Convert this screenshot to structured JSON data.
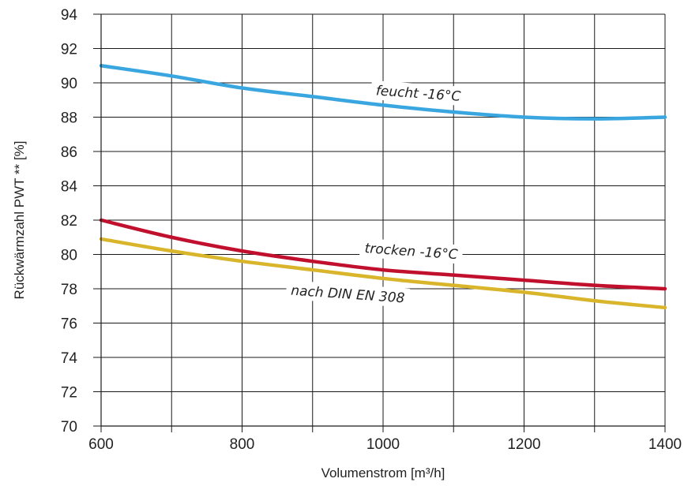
{
  "chart_data": {
    "type": "line",
    "title": "",
    "xlabel": "Volumenstrom [m³/h]",
    "ylabel": "Rückwärmzahl PWT ** [%]",
    "xlim": [
      600,
      1400
    ],
    "ylim": [
      70,
      94
    ],
    "x_ticks": [
      600,
      800,
      1000,
      1200,
      1400
    ],
    "x_tick_labels": [
      "600",
      "800",
      "1000",
      "1200",
      "1400"
    ],
    "x_grid": [
      600,
      700,
      800,
      900,
      1000,
      1100,
      1200,
      1300,
      1400
    ],
    "y_ticks": [
      70,
      72,
      74,
      76,
      78,
      80,
      82,
      84,
      86,
      88,
      90,
      92,
      94
    ],
    "y_tick_labels": [
      "70",
      "72",
      "74",
      "76",
      "78",
      "80",
      "82",
      "84",
      "86",
      "88",
      "90",
      "92",
      "94"
    ],
    "grid": true,
    "legend": "none",
    "series": [
      {
        "name": "feucht -16°C",
        "color": "#3aa6e0",
        "x": [
          600,
          700,
          800,
          900,
          1000,
          1100,
          1200,
          1300,
          1400
        ],
        "y": [
          91.0,
          90.4,
          89.7,
          89.2,
          88.7,
          88.3,
          88.0,
          87.9,
          88.0
        ]
      },
      {
        "name": "trocken -16°C",
        "color": "#c0102e",
        "x": [
          600,
          700,
          800,
          900,
          1000,
          1100,
          1200,
          1300,
          1400
        ],
        "y": [
          82.0,
          81.0,
          80.2,
          79.6,
          79.1,
          78.8,
          78.5,
          78.2,
          78.0
        ]
      },
      {
        "name": "nach DIN EN 308",
        "color": "#d9b52b",
        "x": [
          600,
          700,
          800,
          900,
          1000,
          1100,
          1200,
          1300,
          1400
        ],
        "y": [
          80.9,
          80.2,
          79.6,
          79.1,
          78.6,
          78.2,
          77.8,
          77.3,
          76.9
        ]
      }
    ],
    "annotations": [
      {
        "text": "feucht -16°C",
        "x": 1050,
        "y": 89.4,
        "angle": 4
      },
      {
        "text": "trocken -16°C",
        "x": 1040,
        "y": 80.2,
        "angle": 4
      },
      {
        "text": "nach DIN EN 308",
        "x": 950,
        "y": 77.7,
        "angle": 4
      }
    ]
  }
}
